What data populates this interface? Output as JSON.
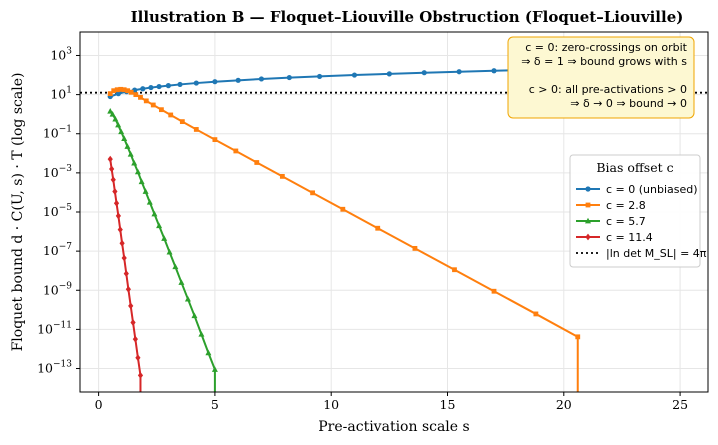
{
  "chart_data": {
    "type": "line",
    "title": "Illustration B — Floquet–Liouville Obstruction (Floquet–Liouville)",
    "xlabel": "Pre-activation scale s",
    "ylabel": "Floquet bound  d · C(U, s) · T  (log scale)",
    "xlim": [
      -0.8,
      26.2
    ],
    "ylim_log10": [
      -14.2,
      4.2
    ],
    "y_scale": "log",
    "grid": true,
    "x_ticks": [
      "0",
      "5",
      "10",
      "15",
      "20",
      "25"
    ],
    "y_ticks": [
      "10^3",
      "10^1",
      "10^-1",
      "10^-3",
      "10^-5",
      "10^-7",
      "10^-9",
      "10^-11",
      "10^-13"
    ],
    "legend": {
      "title": "Bias offset c",
      "placement": "center-right",
      "entries": [
        "c = 0 (unbiased)",
        "c = 2.8",
        "c = 5.7",
        "c = 11.4",
        "|ln det M_SL| = 4π"
      ]
    },
    "reference_line": {
      "label": "|ln det M_SL| = 4π",
      "y": 12.566,
      "style": "dotted",
      "color": "#000000"
    },
    "annotation": {
      "lines": [
        "c = 0: zero-crossings on orbit",
        "⇒ δ = 1 ⇒ bound grows with s",
        "",
        "c > 0: all pre-activations > 0",
        "⇒ δ → 0 ⇒ bound → 0"
      ],
      "placement": "top-right"
    },
    "series": [
      {
        "name": "c = 0 (unbiased)",
        "color": "#1f77b4",
        "marker": "circle",
        "x": [
          0.5,
          0.85,
          1.2,
          1.55,
          1.9,
          2.25,
          2.6,
          3.0,
          3.5,
          4.2,
          5.0,
          6.0,
          7.0,
          8.2,
          9.5,
          11.0,
          12.5,
          14.0,
          15.5,
          17.0,
          18.5,
          20.0,
          21.5,
          23.0,
          24.5,
          25.5
        ],
        "y_log10": [
          0.9,
          1.05,
          1.15,
          1.23,
          1.3,
          1.36,
          1.41,
          1.46,
          1.52,
          1.59,
          1.66,
          1.73,
          1.8,
          1.87,
          1.93,
          2.0,
          2.06,
          2.12,
          2.17,
          2.22,
          2.26,
          2.3,
          2.35,
          2.38,
          2.42,
          2.45
        ]
      },
      {
        "name": "c = 2.8",
        "color": "#ff7f0e",
        "marker": "square",
        "x": [
          0.5,
          0.65,
          0.8,
          0.95,
          1.1,
          1.25,
          1.4,
          1.6,
          1.8,
          2.05,
          2.35,
          2.7,
          3.1,
          3.6,
          4.2,
          5.0,
          5.9,
          6.8,
          7.9,
          9.2,
          10.5,
          12.0,
          13.6,
          15.3,
          17.0,
          18.8,
          20.6,
          20.6
        ],
        "y_log10": [
          1.05,
          1.2,
          1.25,
          1.27,
          1.25,
          1.2,
          1.12,
          1.0,
          0.86,
          0.68,
          0.47,
          0.23,
          -0.04,
          -0.38,
          -0.78,
          -1.3,
          -1.88,
          -2.47,
          -3.18,
          -4.02,
          -4.86,
          -5.83,
          -6.86,
          -7.95,
          -9.05,
          -10.21,
          -11.38,
          -14.2
        ]
      },
      {
        "name": "c = 5.7",
        "color": "#2ca02c",
        "marker": "triangle",
        "x": [
          0.5,
          0.6,
          0.72,
          0.84,
          0.97,
          1.1,
          1.24,
          1.38,
          1.53,
          1.69,
          1.85,
          2.02,
          2.2,
          2.4,
          2.6,
          2.82,
          3.05,
          3.3,
          3.56,
          3.84,
          4.12,
          4.42,
          4.72,
          5.0,
          5.0
        ],
        "y_log10": [
          0.15,
          0.0,
          -0.25,
          -0.55,
          -0.9,
          -1.25,
          -1.65,
          -2.05,
          -2.5,
          -2.95,
          -3.45,
          -3.95,
          -4.5,
          -5.1,
          -5.7,
          -6.35,
          -7.05,
          -7.8,
          -8.6,
          -9.45,
          -10.3,
          -11.25,
          -12.2,
          -13.05,
          -14.2
        ]
      },
      {
        "name": "c = 11.4",
        "color": "#d62728",
        "marker": "diamond",
        "x": [
          0.5,
          0.56,
          0.63,
          0.7,
          0.77,
          0.85,
          0.93,
          1.01,
          1.1,
          1.19,
          1.28,
          1.38,
          1.48,
          1.58,
          1.69,
          1.8,
          1.8
        ],
        "y_log10": [
          -2.3,
          -2.8,
          -3.35,
          -3.95,
          -4.55,
          -5.2,
          -5.9,
          -6.6,
          -7.35,
          -8.15,
          -8.95,
          -9.8,
          -10.65,
          -11.5,
          -12.45,
          -13.35,
          -14.2
        ]
      }
    ]
  }
}
